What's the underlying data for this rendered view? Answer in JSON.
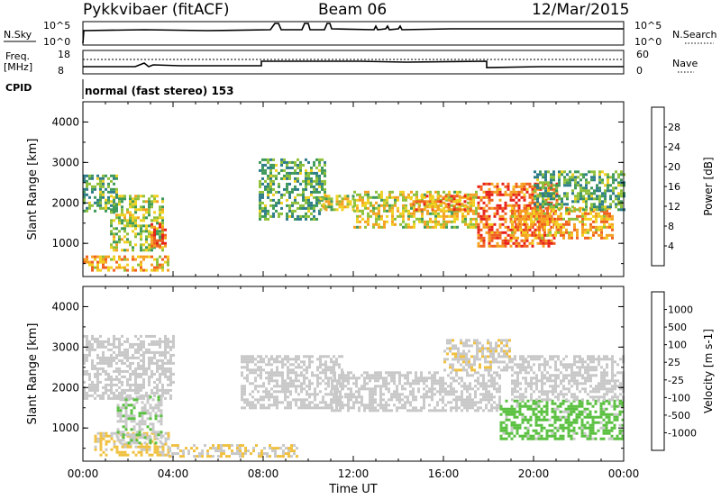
{
  "header": {
    "station": "Pykkvibaer (fitACF)",
    "beam": "Beam 06",
    "date": "12/Mar/2015"
  },
  "panels": {
    "nsky": {
      "label": "N.Sky",
      "tick_top": "10^5",
      "tick_bottom": "10^0",
      "right_tick_top": "10^5",
      "right_tick_bottom": "10^0",
      "right_label": "N.Search"
    },
    "freq": {
      "label_line1": "Freq.",
      "label_line2": "[MHz]",
      "tick_top": "18",
      "tick_bottom": "8",
      "right_tick_top": "60",
      "right_tick_bottom": "0",
      "right_label": "Nave"
    },
    "cpid": {
      "label": "CPID",
      "value": "normal (fast stereo) 153"
    }
  },
  "colors": {
    "trace": "#000000",
    "noise_bg": "#ffffff",
    "power_scale": [
      "#1f3fe0",
      "#2a5ab8",
      "#2f7d8a",
      "#3f9a5a",
      "#8fc03a",
      "#f0d020",
      "#f5a020",
      "#f06020",
      "#e8201a"
    ],
    "velocity_scale": [
      "#2050c0",
      "#2f6ba0",
      "#2f8a6a",
      "#5ac040",
      "#c8c8c8",
      "#f0c040",
      "#f08c20",
      "#f05020",
      "#e01818"
    ]
  },
  "chart_data": [
    {
      "type": "heatmap",
      "name": "power",
      "xlabel": "",
      "ylabel": "Slant Range [km]",
      "x_range": [
        "00:00",
        "24:00"
      ],
      "ylim": [
        180,
        4500
      ],
      "yticks": [
        "1000",
        "2000",
        "3000",
        "4000"
      ],
      "colorbar_label": "Power [dB]",
      "colorbar_ticks": [
        "28",
        "24",
        "20",
        "16",
        "12",
        "8",
        "4"
      ],
      "colorbar_range": [
        0,
        30
      ],
      "regions": [
        {
          "t0": 0.0,
          "t1": 3.8,
          "r0": 300,
          "r1": 700,
          "level": 22
        },
        {
          "t0": 0.0,
          "t1": 1.5,
          "r0": 1800,
          "r1": 2700,
          "level": 12
        },
        {
          "t0": 1.2,
          "t1": 3.6,
          "r0": 800,
          "r1": 2200,
          "level": 16
        },
        {
          "t0": 3.0,
          "t1": 3.7,
          "r0": 900,
          "r1": 1500,
          "level": 26
        },
        {
          "t0": 7.8,
          "t1": 10.8,
          "r0": 1600,
          "r1": 3100,
          "level": 12
        },
        {
          "t0": 10.5,
          "t1": 12.0,
          "r0": 1800,
          "r1": 2200,
          "level": 18
        },
        {
          "t0": 12.0,
          "t1": 17.5,
          "r0": 1400,
          "r1": 2300,
          "level": 18
        },
        {
          "t0": 14.5,
          "t1": 17.2,
          "r0": 1800,
          "r1": 2200,
          "level": 24
        },
        {
          "t0": 17.5,
          "t1": 21.0,
          "r0": 900,
          "r1": 2500,
          "level": 26
        },
        {
          "t0": 19.0,
          "t1": 23.5,
          "r0": 1100,
          "r1": 1900,
          "level": 22
        },
        {
          "t0": 20.0,
          "t1": 24.0,
          "r0": 1800,
          "r1": 2800,
          "level": 12
        }
      ]
    },
    {
      "type": "heatmap",
      "name": "velocity",
      "xlabel": "Time UT",
      "ylabel": "Slant Range [km]",
      "x_range": [
        "00:00",
        "24:00"
      ],
      "xticks": [
        "00:00",
        "04:00",
        "08:00",
        "12:00",
        "16:00",
        "20:00",
        "00:00"
      ],
      "ylim": [
        180,
        4500
      ],
      "yticks": [
        "1000",
        "2000",
        "3000",
        "4000"
      ],
      "colorbar_label": "Velocity [m s-1]",
      "colorbar_ticks": [
        "1000",
        "500",
        "100",
        "25",
        "-25",
        "-100",
        "-500",
        "-1000"
      ],
      "colorbar_range": [
        -1000,
        1000
      ],
      "regions": [
        {
          "t0": 0.0,
          "t1": 4.0,
          "r0": 1700,
          "r1": 3300,
          "level": 0
        },
        {
          "t0": 0.5,
          "t1": 3.8,
          "r0": 300,
          "r1": 900,
          "level": -150
        },
        {
          "t0": 3.8,
          "t1": 9.5,
          "r0": 300,
          "r1": 600,
          "level": -120
        },
        {
          "t0": 1.5,
          "t1": 3.5,
          "r0": 600,
          "r1": 1800,
          "level": 80
        },
        {
          "t0": 7.0,
          "t1": 11.5,
          "r0": 1500,
          "r1": 2800,
          "level": 0
        },
        {
          "t0": 11.0,
          "t1": 18.5,
          "r0": 1400,
          "r1": 2400,
          "level": 0
        },
        {
          "t0": 16.0,
          "t1": 19.0,
          "r0": 2400,
          "r1": 3200,
          "level": -80
        },
        {
          "t0": 18.5,
          "t1": 24.0,
          "r0": 700,
          "r1": 1700,
          "level": 200
        },
        {
          "t0": 19.0,
          "t1": 24.0,
          "r0": 1700,
          "r1": 2800,
          "level": 0
        }
      ]
    }
  ]
}
